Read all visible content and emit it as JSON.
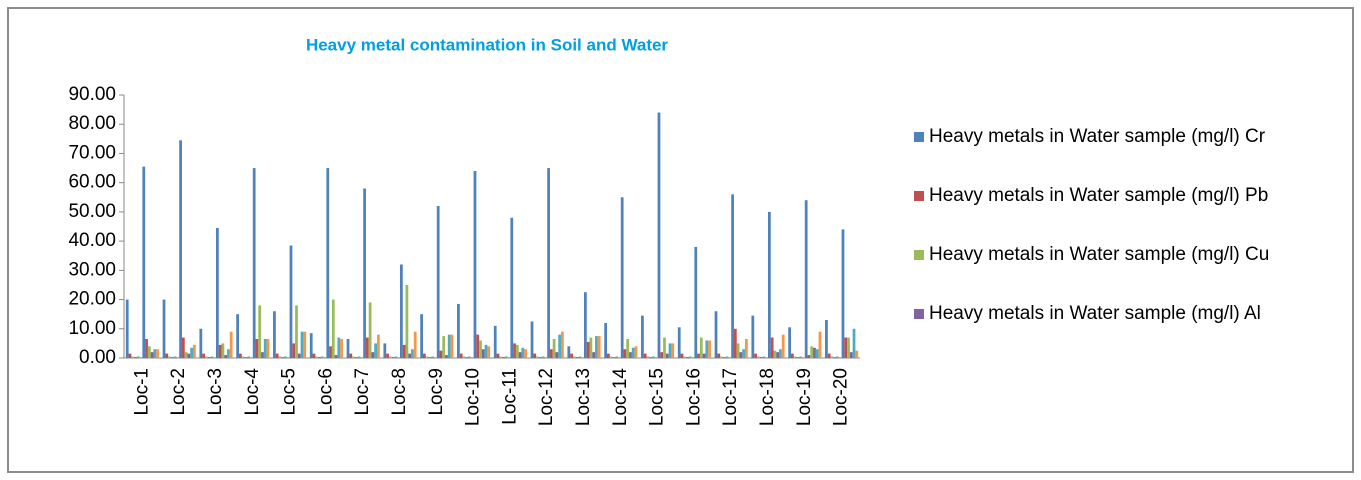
{
  "chart_data": {
    "type": "bar",
    "title": "Heavy metal contamination in Soil and Water",
    "categories": [
      "Loc-1",
      "Loc-2",
      "Loc-3",
      "Loc-4",
      "Loc-5",
      "Loc-6",
      "Loc-7",
      "Loc-8",
      "Loc-9",
      "Loc-10",
      "Loc-11",
      "Loc-12",
      "Loc-13",
      "Loc-14",
      "Loc-15",
      "Loc-16",
      "Loc-17",
      "Loc-18",
      "Loc-19",
      "Loc-20"
    ],
    "series": [
      {
        "name": "Heavy metals in Water sample (mg/l) Cr",
        "color": "#4f81bd",
        "values": [
          20,
          20,
          10,
          15,
          16,
          8.5,
          6.5,
          5,
          15,
          18.5,
          11,
          12.5,
          4,
          12,
          14.5,
          10.5,
          16,
          14.5,
          10.5,
          13
        ]
      },
      {
        "name": "Heavy metals in Water sample (mg/l) Pb",
        "color": "#c0504d",
        "values": [
          1.5,
          1.5,
          1.5,
          1.5,
          1.5,
          1.5,
          1.5,
          1.5,
          1.5,
          1.5,
          1.5,
          1.5,
          1.5,
          1.5,
          1.5,
          1.5,
          1.5,
          1.5,
          1.5,
          1.5
        ]
      },
      {
        "name": "Heavy metals in Water sample (mg/l) Cu",
        "color": "#9bbb59",
        "values": [
          0.5,
          0.5,
          0.5,
          0.5,
          0.5,
          0.5,
          0.5,
          0.5,
          0.5,
          0.5,
          0.5,
          0.5,
          0.5,
          0.5,
          0.5,
          0.5,
          0.5,
          0.5,
          0.5,
          0.5
        ]
      },
      {
        "name": "Heavy metals in Water sample (mg/l) Al",
        "color": "#8064a2",
        "values": [
          0.3,
          0.3,
          0.3,
          0.3,
          0.3,
          0.3,
          0.3,
          0.3,
          0.3,
          0.3,
          0.3,
          0.3,
          0.3,
          0.3,
          0.3,
          0.3,
          0.3,
          0.3,
          0.3,
          0.3
        ]
      },
      {
        "color": "#4bacc6",
        "values": [
          0.5,
          0.5,
          0.5,
          0.5,
          0.5,
          0.5,
          0.5,
          0.5,
          0.5,
          0.5,
          0.5,
          0.5,
          0.5,
          0.5,
          0.5,
          0.5,
          0.5,
          0.5,
          0.5,
          0.5
        ]
      },
      {
        "color": "#f79646",
        "values": [
          0.3,
          0.3,
          0.3,
          0.3,
          0.3,
          0.3,
          0.3,
          0.3,
          0.3,
          0.3,
          0.3,
          0.3,
          0.3,
          0.3,
          0.3,
          0.3,
          0.3,
          0.3,
          0.3,
          0.3
        ]
      },
      {
        "color": "#4f81bd",
        "values": [
          65.5,
          74.5,
          44.5,
          65,
          38.5,
          65,
          58,
          32,
          52,
          64,
          48,
          65,
          22.5,
          55,
          84,
          38,
          56,
          50,
          54,
          44
        ]
      },
      {
        "color": "#c0504d",
        "values": [
          6.5,
          7,
          4.5,
          6.5,
          5,
          4,
          7,
          4.5,
          2.5,
          8,
          5,
          3,
          5.5,
          3,
          2,
          1.5,
          10,
          7,
          1,
          7
        ]
      },
      {
        "color": "#9bbb59",
        "values": [
          4,
          2,
          5,
          18,
          18,
          20,
          19,
          25,
          7.5,
          6,
          4.5,
          6.5,
          7,
          6.5,
          7,
          7,
          5,
          2.5,
          4,
          7
        ]
      },
      {
        "color": "#8064a2",
        "values": [
          2,
          1.5,
          1,
          2,
          1.5,
          1,
          2,
          1.5,
          1,
          3,
          2,
          2,
          2,
          2,
          1.5,
          1.5,
          2,
          2,
          3.5,
          2
        ]
      },
      {
        "color": "#4bacc6",
        "values": [
          3,
          3.5,
          3,
          6.5,
          9,
          7,
          5,
          3,
          8,
          4.5,
          3.5,
          8,
          7.5,
          3.5,
          5,
          6,
          3,
          3,
          3,
          10
        ]
      },
      {
        "color": "#f79646",
        "values": [
          3,
          4.5,
          9,
          6.5,
          9,
          6.5,
          8,
          9,
          8,
          4,
          3,
          9,
          7.5,
          4,
          5,
          6,
          6.5,
          8,
          9,
          2.5
        ]
      }
    ],
    "ylim": [
      0,
      90
    ],
    "yticks": [
      {
        "value": 0,
        "label": "0.00"
      },
      {
        "value": 10,
        "label": "10.00"
      },
      {
        "value": 20,
        "label": "20.00"
      },
      {
        "value": 30,
        "label": "30.00"
      },
      {
        "value": 40,
        "label": "40.00"
      },
      {
        "value": 50,
        "label": "50.00"
      },
      {
        "value": 60,
        "label": "60.00"
      },
      {
        "value": 70,
        "label": "70.00"
      },
      {
        "value": 80,
        "label": "80.00"
      },
      {
        "value": 90,
        "label": "90.00"
      }
    ],
    "grid": false,
    "legend": "right"
  }
}
